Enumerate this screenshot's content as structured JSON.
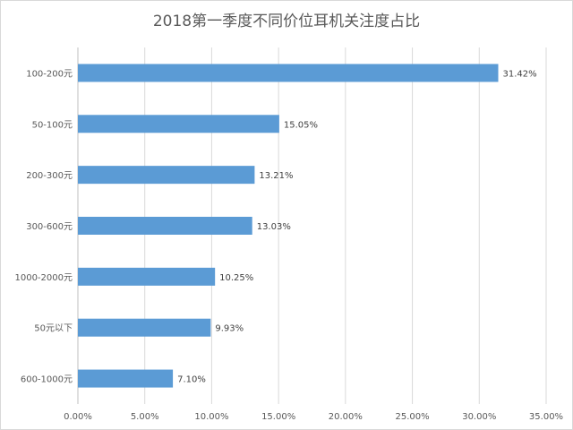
{
  "chart_data": {
    "type": "bar",
    "orientation": "horizontal",
    "title": "2018第一季度不同价位耳机关注度占比",
    "xlabel": "",
    "ylabel": "",
    "categories": [
      "100-200元",
      "50-100元",
      "200-300元",
      "300-600元",
      "1000-2000元",
      "50元以下",
      "600-1000元"
    ],
    "values": [
      31.42,
      15.05,
      13.21,
      13.03,
      10.25,
      9.93,
      7.1
    ],
    "data_labels": [
      "31.42%",
      "15.05%",
      "13.21%",
      "13.03%",
      "10.25%",
      "9.93%",
      "7.10%"
    ],
    "xlim": [
      0,
      35
    ],
    "x_ticks": [
      0,
      5,
      10,
      15,
      20,
      25,
      30,
      35
    ],
    "x_tick_labels": [
      "0.00%",
      "5.00%",
      "10.00%",
      "15.00%",
      "20.00%",
      "25.00%",
      "30.00%",
      "35.00%"
    ],
    "grid": "vertical",
    "legend": "none",
    "bar_color": "#5b9bd5",
    "grid_color": "#d9d9d9"
  }
}
